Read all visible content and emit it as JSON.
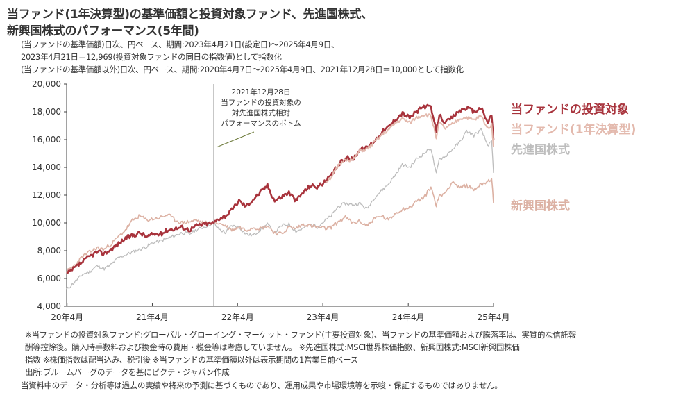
{
  "title": {
    "line1": "当ファンド(1年決算型)の基準価額と投資対象ファンド、先進国株式、",
    "line2": "新興国株式のパフォーマンス(5年間)"
  },
  "subtitle": {
    "line1": "(当ファンドの基準価額)日次、円ベース、期間:2023年4月21日(設定日)～2025年4月9日、",
    "line2": "2023年4月21日＝12,969(投資対象ファンドの同日の指数値)として指数化",
    "line3": "(当ファンドの基準価額以外)日次、円ベース、期間:2020年4月7日～2025年4月9日、2021年12月28日＝10,000として指数化"
  },
  "annotation": {
    "line1": "2021年12月28日",
    "line2": "当ファンドの投資対象の",
    "line3": "対先進国株式相対",
    "line4": "パフォーマンスのボトム"
  },
  "legend": {
    "target_fund": "当ファンドの投資対象",
    "this_fund": "当ファンド(1年決算型)",
    "developed": "先進国株式",
    "emerging": "新興国株式"
  },
  "notes": {
    "line1": "※当ファンドの投資対象ファンド:グローバル・グローイング・マーケット・ファンド(主要投資対象)、当ファンドの基準価額および騰落率は、実質的な信託報",
    "line2": "酬等控除後。購入時手数料および換金時の費用・税金等は考慮していません。 ※先進国株式:MSCI世界株価指数、新興国株式:MSCI新興国株価",
    "line3": "指数 ※株価指数は配当込み、税引後 ※当ファンドの基準価額以外は表示期間の1営業日前ベース",
    "line4": "出所:ブルームバーグのデータを基にピクテ・ジャパン作成",
    "line5": "当資料中のデータ・分析等は過去の実績や将来の予測に基づくものであり、運用成果や市場環境等を示唆・保証するものではありません。"
  },
  "colors": {
    "target_fund": "#a8333c",
    "this_fund": "#e3b9ad",
    "developed": "#bdbdbd",
    "emerging": "#dcb1a3",
    "axis": "#444444"
  },
  "chart_data": {
    "type": "line",
    "title": "",
    "xlabel": "",
    "ylabel": "",
    "ylim": [
      4000,
      20000
    ],
    "xlim": [
      "2020-04-07",
      "2025-04-09"
    ],
    "yticks": [
      4000,
      6000,
      8000,
      10000,
      12000,
      14000,
      16000,
      18000,
      20000
    ],
    "ytick_labels": [
      "4,000",
      "6,000",
      "8,000",
      "10,000",
      "12,000",
      "14,000",
      "16,000",
      "18,000",
      "20,000"
    ],
    "xticks": [
      "2020-04",
      "2021-04",
      "2022-04",
      "2023-04",
      "2024-04",
      "2025-04"
    ],
    "xtick_labels": [
      "20年4月",
      "21年4月",
      "22年4月",
      "23年4月",
      "24年4月",
      "25年4月"
    ],
    "reference_line": "2021-12-28",
    "series": [
      {
        "name": "先進国株式",
        "points": [
          [
            "2020-04-07",
            5200
          ],
          [
            "2020-05-15",
            5800
          ],
          [
            "2020-06-15",
            6300
          ],
          [
            "2020-07-15",
            6500
          ],
          [
            "2020-08-15",
            6900
          ],
          [
            "2020-09-15",
            6700
          ],
          [
            "2020-10-15",
            7000
          ],
          [
            "2020-11-15",
            7500
          ],
          [
            "2020-12-15",
            7700
          ],
          [
            "2021-01-15",
            7900
          ],
          [
            "2021-02-15",
            8100
          ],
          [
            "2021-03-15",
            8300
          ],
          [
            "2021-04-15",
            8600
          ],
          [
            "2021-05-15",
            8700
          ],
          [
            "2021-06-15",
            8900
          ],
          [
            "2021-07-15",
            9100
          ],
          [
            "2021-08-15",
            9300
          ],
          [
            "2021-09-15",
            9200
          ],
          [
            "2021-10-15",
            9500
          ],
          [
            "2021-11-15",
            9700
          ],
          [
            "2021-12-28",
            10000
          ],
          [
            "2022-01-15",
            9600
          ],
          [
            "2022-02-15",
            9300
          ],
          [
            "2022-03-15",
            9800
          ],
          [
            "2022-04-15",
            9700
          ],
          [
            "2022-05-15",
            9200
          ],
          [
            "2022-06-15",
            9100
          ],
          [
            "2022-07-15",
            9500
          ],
          [
            "2022-08-15",
            9900
          ],
          [
            "2022-09-15",
            9300
          ],
          [
            "2022-10-15",
            9800
          ],
          [
            "2022-11-15",
            9900
          ],
          [
            "2022-12-15",
            9400
          ],
          [
            "2023-01-15",
            9600
          ],
          [
            "2023-02-15",
            9900
          ],
          [
            "2023-03-15",
            9700
          ],
          [
            "2023-04-21",
            10200
          ],
          [
            "2023-05-15",
            10500
          ],
          [
            "2023-06-15",
            11200
          ],
          [
            "2023-07-15",
            11400
          ],
          [
            "2023-08-15",
            11300
          ],
          [
            "2023-09-15",
            11400
          ],
          [
            "2023-10-15",
            11000
          ],
          [
            "2023-11-15",
            11800
          ],
          [
            "2023-12-15",
            12300
          ],
          [
            "2024-01-15",
            12800
          ],
          [
            "2024-02-15",
            13500
          ],
          [
            "2024-03-15",
            14200
          ],
          [
            "2024-04-15",
            14000
          ],
          [
            "2024-05-15",
            14600
          ],
          [
            "2024-06-15",
            15000
          ],
          [
            "2024-07-15",
            15400
          ],
          [
            "2024-08-07",
            13500
          ],
          [
            "2024-08-20",
            14600
          ],
          [
            "2024-09-15",
            14800
          ],
          [
            "2024-10-15",
            15300
          ],
          [
            "2024-11-15",
            15800
          ],
          [
            "2024-12-15",
            16600
          ],
          [
            "2025-01-15",
            16300
          ],
          [
            "2025-02-15",
            16700
          ],
          [
            "2025-03-15",
            15600
          ],
          [
            "2025-04-01",
            15800
          ],
          [
            "2025-04-09",
            13600
          ]
        ]
      },
      {
        "name": "新興国株式",
        "points": [
          [
            "2020-04-07",
            6500
          ],
          [
            "2020-05-15",
            7000
          ],
          [
            "2020-06-15",
            7600
          ],
          [
            "2020-07-15",
            7900
          ],
          [
            "2020-08-15",
            8200
          ],
          [
            "2020-09-15",
            8100
          ],
          [
            "2020-10-15",
            8500
          ],
          [
            "2020-11-15",
            9000
          ],
          [
            "2020-12-15",
            9500
          ],
          [
            "2021-01-15",
            10200
          ],
          [
            "2021-02-15",
            10500
          ],
          [
            "2021-03-15",
            10200
          ],
          [
            "2021-04-15",
            10300
          ],
          [
            "2021-05-15",
            10400
          ],
          [
            "2021-06-15",
            10600
          ],
          [
            "2021-07-15",
            10200
          ],
          [
            "2021-08-15",
            10000
          ],
          [
            "2021-09-15",
            10100
          ],
          [
            "2021-10-15",
            10200
          ],
          [
            "2021-11-15",
            10000
          ],
          [
            "2021-12-28",
            10000
          ],
          [
            "2022-01-15",
            10000
          ],
          [
            "2022-02-15",
            9800
          ],
          [
            "2022-03-15",
            9500
          ],
          [
            "2022-04-15",
            9700
          ],
          [
            "2022-05-15",
            9500
          ],
          [
            "2022-06-15",
            9700
          ],
          [
            "2022-07-15",
            9600
          ],
          [
            "2022-08-15",
            9800
          ],
          [
            "2022-09-15",
            9300
          ],
          [
            "2022-10-15",
            9200
          ],
          [
            "2022-11-15",
            9700
          ],
          [
            "2022-12-15",
            9600
          ],
          [
            "2023-01-15",
            9900
          ],
          [
            "2023-02-15",
            9800
          ],
          [
            "2023-03-15",
            9700
          ],
          [
            "2023-04-21",
            9600
          ],
          [
            "2023-05-15",
            9700
          ],
          [
            "2023-06-15",
            10100
          ],
          [
            "2023-07-15",
            10400
          ],
          [
            "2023-08-15",
            10000
          ],
          [
            "2023-09-15",
            10100
          ],
          [
            "2023-10-15",
            9800
          ],
          [
            "2023-11-15",
            10300
          ],
          [
            "2023-12-15",
            10500
          ],
          [
            "2024-01-15",
            10200
          ],
          [
            "2024-02-15",
            10700
          ],
          [
            "2024-03-15",
            11000
          ],
          [
            "2024-04-15",
            11100
          ],
          [
            "2024-05-15",
            11600
          ],
          [
            "2024-06-15",
            11800
          ],
          [
            "2024-07-15",
            12600
          ],
          [
            "2024-08-07",
            11300
          ],
          [
            "2024-08-20",
            11900
          ],
          [
            "2024-09-15",
            12200
          ],
          [
            "2024-10-15",
            13000
          ],
          [
            "2024-11-15",
            12500
          ],
          [
            "2024-12-15",
            12700
          ],
          [
            "2025-01-15",
            12400
          ],
          [
            "2025-02-15",
            12800
          ],
          [
            "2025-03-15",
            13000
          ],
          [
            "2025-04-01",
            13200
          ],
          [
            "2025-04-09",
            11400
          ]
        ]
      },
      {
        "name": "当ファンドの投資対象",
        "points": [
          [
            "2020-04-07",
            6300
          ],
          [
            "2020-05-15",
            6800
          ],
          [
            "2020-06-15",
            7200
          ],
          [
            "2020-07-15",
            7600
          ],
          [
            "2020-08-15",
            7900
          ],
          [
            "2020-09-15",
            7800
          ],
          [
            "2020-10-15",
            8100
          ],
          [
            "2020-11-15",
            8500
          ],
          [
            "2020-12-15",
            8900
          ],
          [
            "2021-01-15",
            9100
          ],
          [
            "2021-02-15",
            9300
          ],
          [
            "2021-03-15",
            9000
          ],
          [
            "2021-04-15",
            9200
          ],
          [
            "2021-05-15",
            9200
          ],
          [
            "2021-06-15",
            9500
          ],
          [
            "2021-07-15",
            9600
          ],
          [
            "2021-08-15",
            9700
          ],
          [
            "2021-09-15",
            9500
          ],
          [
            "2021-10-15",
            9800
          ],
          [
            "2021-11-15",
            9900
          ],
          [
            "2021-12-28",
            10000
          ],
          [
            "2022-01-15",
            10300
          ],
          [
            "2022-02-15",
            10500
          ],
          [
            "2022-03-15",
            10900
          ],
          [
            "2022-04-15",
            11600
          ],
          [
            "2022-05-15",
            11200
          ],
          [
            "2022-06-15",
            11700
          ],
          [
            "2022-07-15",
            12200
          ],
          [
            "2022-08-15",
            12700
          ],
          [
            "2022-09-15",
            11600
          ],
          [
            "2022-10-15",
            11900
          ],
          [
            "2022-11-15",
            12200
          ],
          [
            "2022-12-15",
            11600
          ],
          [
            "2023-01-15",
            12200
          ],
          [
            "2023-02-15",
            12700
          ],
          [
            "2023-03-15",
            12600
          ],
          [
            "2023-04-21",
            12969
          ],
          [
            "2023-05-15",
            13400
          ],
          [
            "2023-06-15",
            14200
          ],
          [
            "2023-07-15",
            14700
          ],
          [
            "2023-08-15",
            14600
          ],
          [
            "2023-09-15",
            15300
          ],
          [
            "2023-10-15",
            15400
          ],
          [
            "2023-11-15",
            15900
          ],
          [
            "2023-12-15",
            16500
          ],
          [
            "2024-01-15",
            16900
          ],
          [
            "2024-02-15",
            17500
          ],
          [
            "2024-03-15",
            17900
          ],
          [
            "2024-04-15",
            17600
          ],
          [
            "2024-05-15",
            18000
          ],
          [
            "2024-06-15",
            18400
          ],
          [
            "2024-07-15",
            18300
          ],
          [
            "2024-08-07",
            16600
          ],
          [
            "2024-08-20",
            17800
          ],
          [
            "2024-09-15",
            17200
          ],
          [
            "2024-10-15",
            17600
          ],
          [
            "2024-11-15",
            18100
          ],
          [
            "2024-12-15",
            18300
          ],
          [
            "2025-01-15",
            18000
          ],
          [
            "2025-02-15",
            18300
          ],
          [
            "2025-03-15",
            17200
          ],
          [
            "2025-04-01",
            17800
          ],
          [
            "2025-04-09",
            16000
          ]
        ]
      },
      {
        "name": "当ファンド(1年決算型)",
        "points": [
          [
            "2023-04-21",
            12969
          ],
          [
            "2023-05-15",
            13300
          ],
          [
            "2023-06-15",
            14100
          ],
          [
            "2023-07-15",
            14600
          ],
          [
            "2023-08-15",
            14500
          ],
          [
            "2023-09-15",
            15200
          ],
          [
            "2023-10-15",
            15300
          ],
          [
            "2023-11-15",
            15800
          ],
          [
            "2023-12-15",
            16300
          ],
          [
            "2024-01-15",
            16700
          ],
          [
            "2024-02-15",
            17200
          ],
          [
            "2024-03-15",
            17500
          ],
          [
            "2024-04-15",
            17200
          ],
          [
            "2024-05-15",
            17600
          ],
          [
            "2024-06-15",
            17800
          ],
          [
            "2024-07-15",
            17700
          ],
          [
            "2024-08-07",
            16200
          ],
          [
            "2024-08-20",
            17200
          ],
          [
            "2024-09-15",
            16800
          ],
          [
            "2024-10-15",
            17100
          ],
          [
            "2024-11-15",
            17500
          ],
          [
            "2024-12-15",
            17600
          ],
          [
            "2025-01-15",
            17400
          ],
          [
            "2025-02-15",
            17700
          ],
          [
            "2025-03-15",
            16800
          ],
          [
            "2025-04-01",
            17100
          ],
          [
            "2025-04-09",
            15500
          ]
        ]
      }
    ]
  }
}
